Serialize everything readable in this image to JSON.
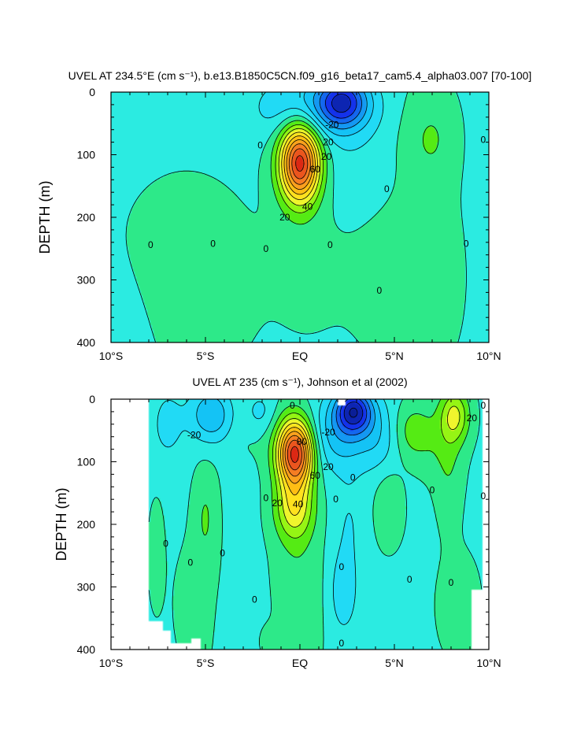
{
  "chart_data": [
    {
      "type": "heatmap",
      "title": "UVEL AT 234.5°E (cm s⁻¹), b.e13.B1850C5CN.f09_g16_beta17_cam5.4_alpha03.007 [70-100]",
      "xlabel": "",
      "ylabel": "DEPTH (m)",
      "xlim": [
        -10,
        10
      ],
      "ylim": [
        0,
        400
      ],
      "y_reversed": true,
      "x_tick_labels": [
        "10°S",
        "5°S",
        "EQ",
        "5°N",
        "10°N"
      ],
      "y_tick_labels": [
        "0",
        "100",
        "200",
        "300",
        "400"
      ],
      "contour_interval": 10,
      "features": [
        {
          "kind": "max",
          "lat": 0.0,
          "depth": 112,
          "value": 95
        },
        {
          "kind": "min",
          "lat": 2.3,
          "depth": 15,
          "value": -45
        },
        {
          "kind": "max",
          "lat": 7.0,
          "depth": 70,
          "value": 10
        },
        {
          "kind": "max",
          "lat": -6.0,
          "depth": 290,
          "value": 5
        }
      ],
      "contour_labels": [
        {
          "text": "-20",
          "lat": 1.7,
          "depth": 52
        },
        {
          "text": "0",
          "lat": -2.1,
          "depth": 85
        },
        {
          "text": "20",
          "lat": 1.5,
          "depth": 80
        },
        {
          "text": "20",
          "lat": 1.4,
          "depth": 103
        },
        {
          "text": "60",
          "lat": 0.8,
          "depth": 123
        },
        {
          "text": "40",
          "lat": 0.4,
          "depth": 183
        },
        {
          "text": "20",
          "lat": -0.8,
          "depth": 200
        },
        {
          "text": "0",
          "lat": -7.9,
          "depth": 244
        },
        {
          "text": "0",
          "lat": -4.6,
          "depth": 242
        },
        {
          "text": "0",
          "lat": -1.8,
          "depth": 250
        },
        {
          "text": "0",
          "lat": 1.6,
          "depth": 244
        },
        {
          "text": "0",
          "lat": 4.6,
          "depth": 155
        },
        {
          "text": "0",
          "lat": 4.2,
          "depth": 317
        },
        {
          "text": "0",
          "lat": 8.8,
          "depth": 242
        },
        {
          "text": "0",
          "lat": 9.7,
          "depth": 76
        }
      ]
    },
    {
      "type": "heatmap",
      "title": "UVEL AT 235 (cm s⁻¹), Johnson et al (2002)",
      "xlabel": "",
      "ylabel": "DEPTH (m)",
      "xlim": [
        -10,
        10
      ],
      "ylim": [
        0,
        400
      ],
      "y_reversed": true,
      "x_tick_labels": [
        "10°S",
        "5°S",
        "EQ",
        "5°N",
        "10°N"
      ],
      "y_tick_labels": [
        "0",
        "100",
        "200",
        "300",
        "400"
      ],
      "contour_interval": 10,
      "features": [
        {
          "kind": "max",
          "lat": -0.2,
          "depth": 85,
          "value": 95
        },
        {
          "kind": "min",
          "lat": 2.8,
          "depth": 20,
          "value": -55
        },
        {
          "kind": "max",
          "lat": 8.2,
          "depth": 25,
          "value": 30
        },
        {
          "kind": "max",
          "lat": 6.0,
          "depth": 50,
          "value": 15
        },
        {
          "kind": "min",
          "lat": -4.7,
          "depth": 25,
          "value": -25
        },
        {
          "kind": "max",
          "lat": -5.0,
          "depth": 185,
          "value": 10
        },
        {
          "kind": "max",
          "lat": 4.7,
          "depth": 180,
          "value": 10
        },
        {
          "kind": "min",
          "lat": 2.3,
          "depth": 300,
          "value": -15
        }
      ],
      "contour_labels": [
        {
          "text": "0",
          "lat": -0.4,
          "depth": 10
        },
        {
          "text": "-20",
          "lat": -5.6,
          "depth": 57
        },
        {
          "text": "-20",
          "lat": 1.5,
          "depth": 53
        },
        {
          "text": "80",
          "lat": 0.1,
          "depth": 68
        },
        {
          "text": "60",
          "lat": 0.8,
          "depth": 122
        },
        {
          "text": "20",
          "lat": 1.5,
          "depth": 108
        },
        {
          "text": "0",
          "lat": 2.8,
          "depth": 125
        },
        {
          "text": "40",
          "lat": -0.1,
          "depth": 168
        },
        {
          "text": "20",
          "lat": -1.2,
          "depth": 166
        },
        {
          "text": "0",
          "lat": -1.8,
          "depth": 158
        },
        {
          "text": "0",
          "lat": 1.9,
          "depth": 160
        },
        {
          "text": "0",
          "lat": 5.8,
          "depth": 288
        },
        {
          "text": "0",
          "lat": 7.0,
          "depth": 145
        },
        {
          "text": "0",
          "lat": 9.7,
          "depth": 155
        },
        {
          "text": "0",
          "lat": 9.7,
          "depth": 10
        },
        {
          "text": "20",
          "lat": 9.1,
          "depth": 30
        },
        {
          "text": "0",
          "lat": -7.1,
          "depth": 231
        },
        {
          "text": "0",
          "lat": -5.8,
          "depth": 261
        },
        {
          "text": "0",
          "lat": -4.1,
          "depth": 246
        },
        {
          "text": "0",
          "lat": -2.4,
          "depth": 320
        },
        {
          "text": "0",
          "lat": 2.2,
          "depth": 268
        },
        {
          "text": "0",
          "lat": 2.2,
          "depth": 390
        },
        {
          "text": "0",
          "lat": 8.0,
          "depth": 293
        }
      ],
      "missing_regions": [
        {
          "lat": [
            -10,
            -8.0
          ],
          "depth": [
            0,
            400
          ]
        },
        {
          "lat": [
            -8.0,
            -7.3
          ],
          "depth": [
            355,
            400
          ]
        },
        {
          "lat": [
            -7.3,
            -6.9
          ],
          "depth": [
            370,
            400
          ]
        },
        {
          "lat": [
            -6.9,
            -5.8
          ],
          "depth": [
            390,
            400
          ]
        },
        {
          "lat": [
            -5.8,
            -5.3
          ],
          "depth": [
            383,
            400
          ]
        },
        {
          "lat": [
            9.1,
            10
          ],
          "depth": [
            305,
            400
          ]
        },
        {
          "lat": [
            9.7,
            10
          ],
          "depth": [
            0,
            305
          ]
        },
        {
          "lat": [
            2.0,
            2.4
          ],
          "depth": [
            0,
            10
          ]
        }
      ]
    }
  ]
}
